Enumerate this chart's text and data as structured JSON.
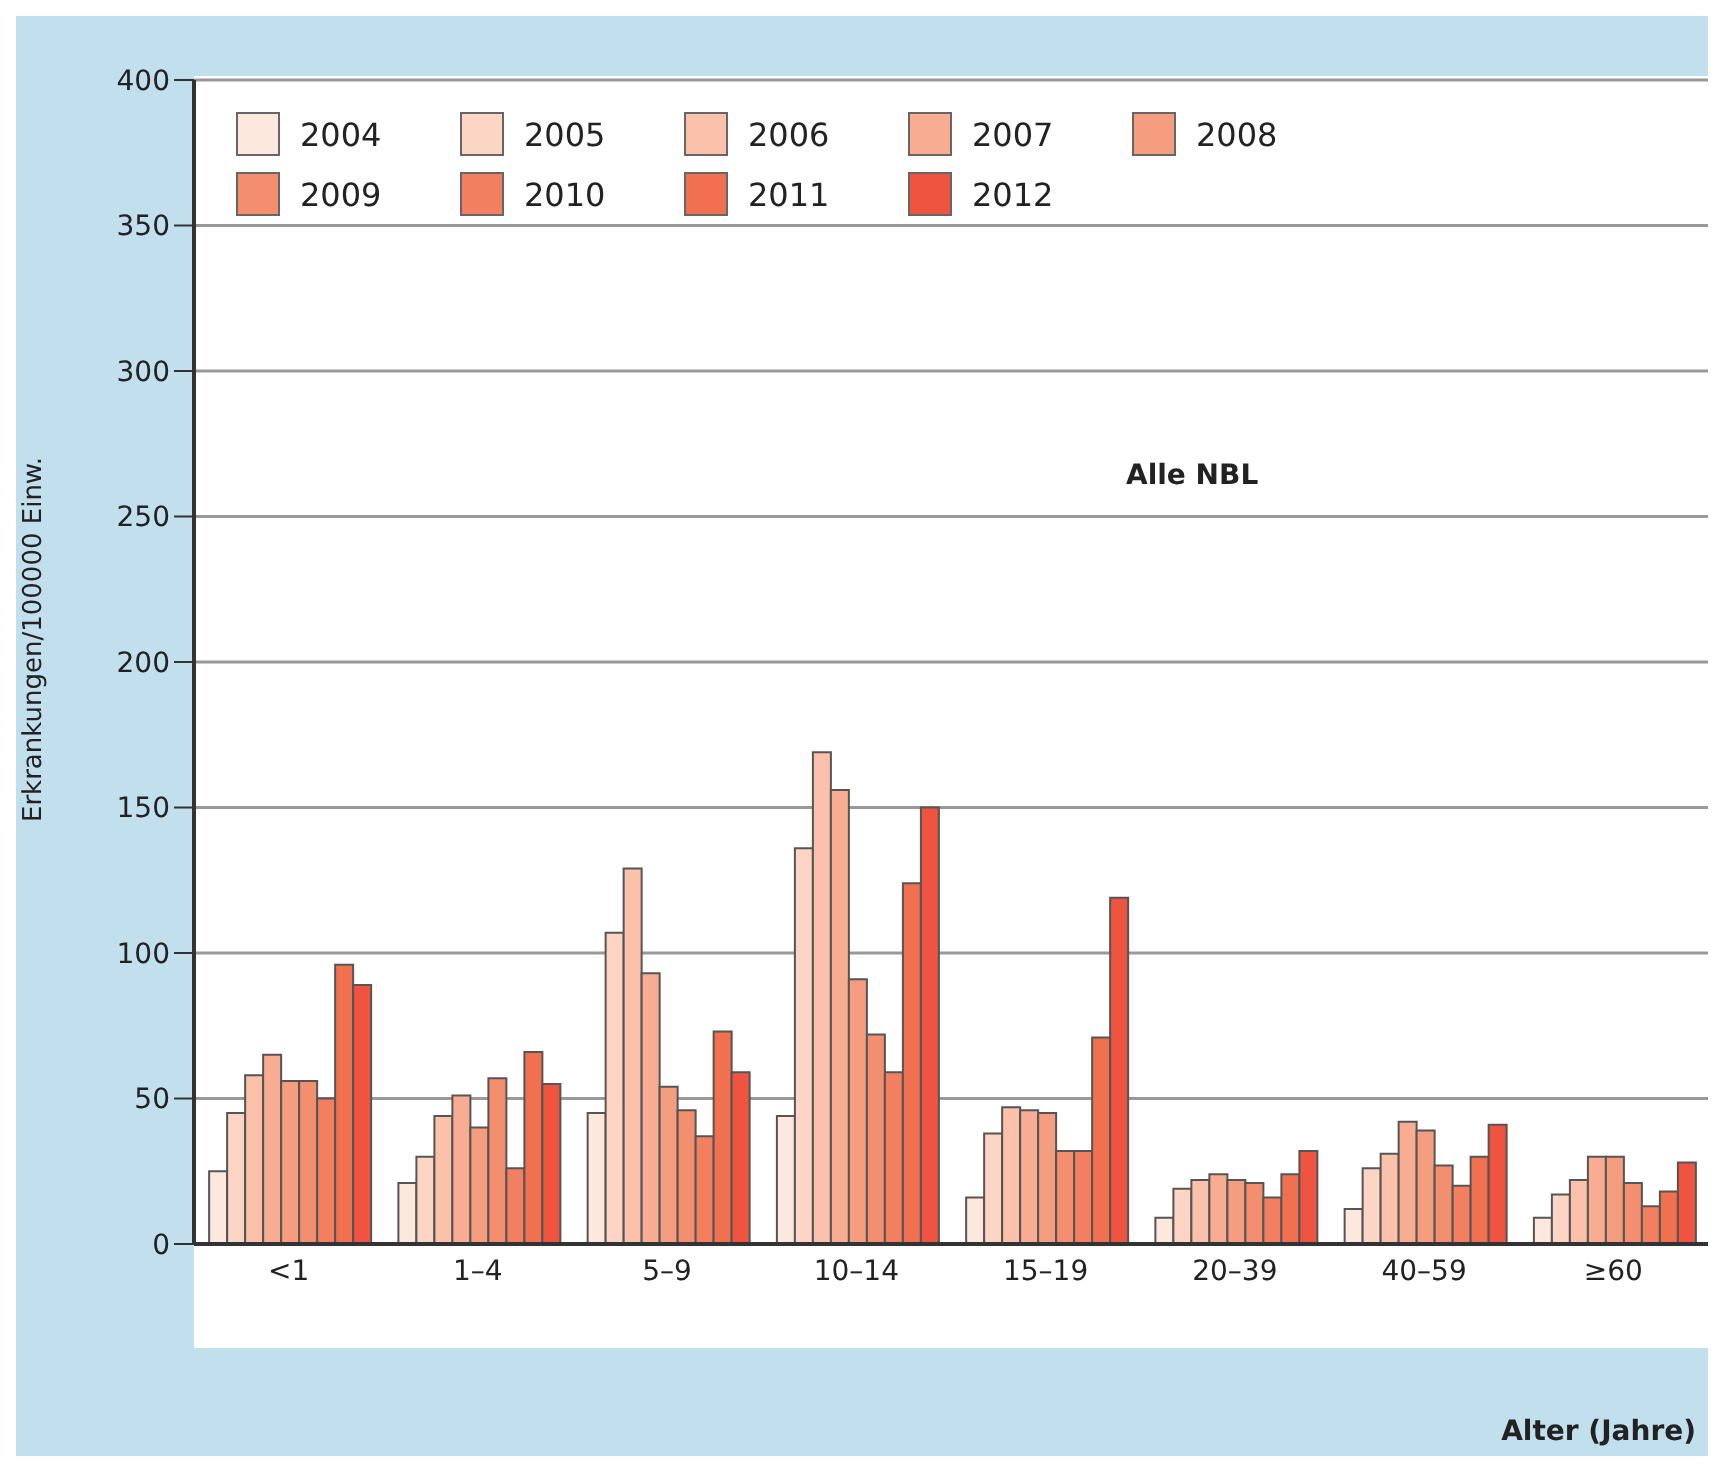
{
  "chart_data": {
    "type": "bar",
    "ylabel": "Erkrankungen/100000 Einw.",
    "xlabel": "Alter (Jahre)",
    "annotations": [
      "Alle NBL"
    ],
    "categories": [
      "<1",
      "1–4",
      "5–9",
      "10–14",
      "15–19",
      "20–39",
      "40–59",
      "≥60"
    ],
    "series": [
      {
        "name": "2004",
        "color": "#fde8de",
        "values": [
          25,
          21,
          45,
          44,
          16,
          9,
          12,
          9
        ]
      },
      {
        "name": "2005",
        "color": "#fcd5c5",
        "values": [
          45,
          30,
          107,
          136,
          38,
          19,
          26,
          17
        ]
      },
      {
        "name": "2006",
        "color": "#fbc1aa",
        "values": [
          58,
          44,
          129,
          169,
          47,
          22,
          31,
          22
        ]
      },
      {
        "name": "2007",
        "color": "#f8ad93",
        "values": [
          65,
          51,
          93,
          156,
          46,
          24,
          42,
          30
        ]
      },
      {
        "name": "2008",
        "color": "#f59d7f",
        "values": [
          56,
          40,
          54,
          91,
          45,
          22,
          39,
          30
        ]
      },
      {
        "name": "2009",
        "color": "#f38e6e",
        "values": [
          56,
          57,
          46,
          72,
          32,
          21,
          27,
          21
        ]
      },
      {
        "name": "2010",
        "color": "#f27f5f",
        "values": [
          50,
          26,
          37,
          59,
          32,
          16,
          20,
          13
        ]
      },
      {
        "name": "2011",
        "color": "#f07050",
        "values": [
          96,
          66,
          73,
          124,
          71,
          24,
          30,
          18
        ]
      },
      {
        "name": "2012",
        "color": "#ee5440",
        "values": [
          89,
          55,
          59,
          150,
          119,
          32,
          41,
          28
        ]
      }
    ],
    "ylim": [
      0,
      400
    ],
    "yticks": [
      0,
      50,
      100,
      150,
      200,
      250,
      300,
      350,
      400
    ],
    "grid": "y",
    "legend": "top left"
  }
}
